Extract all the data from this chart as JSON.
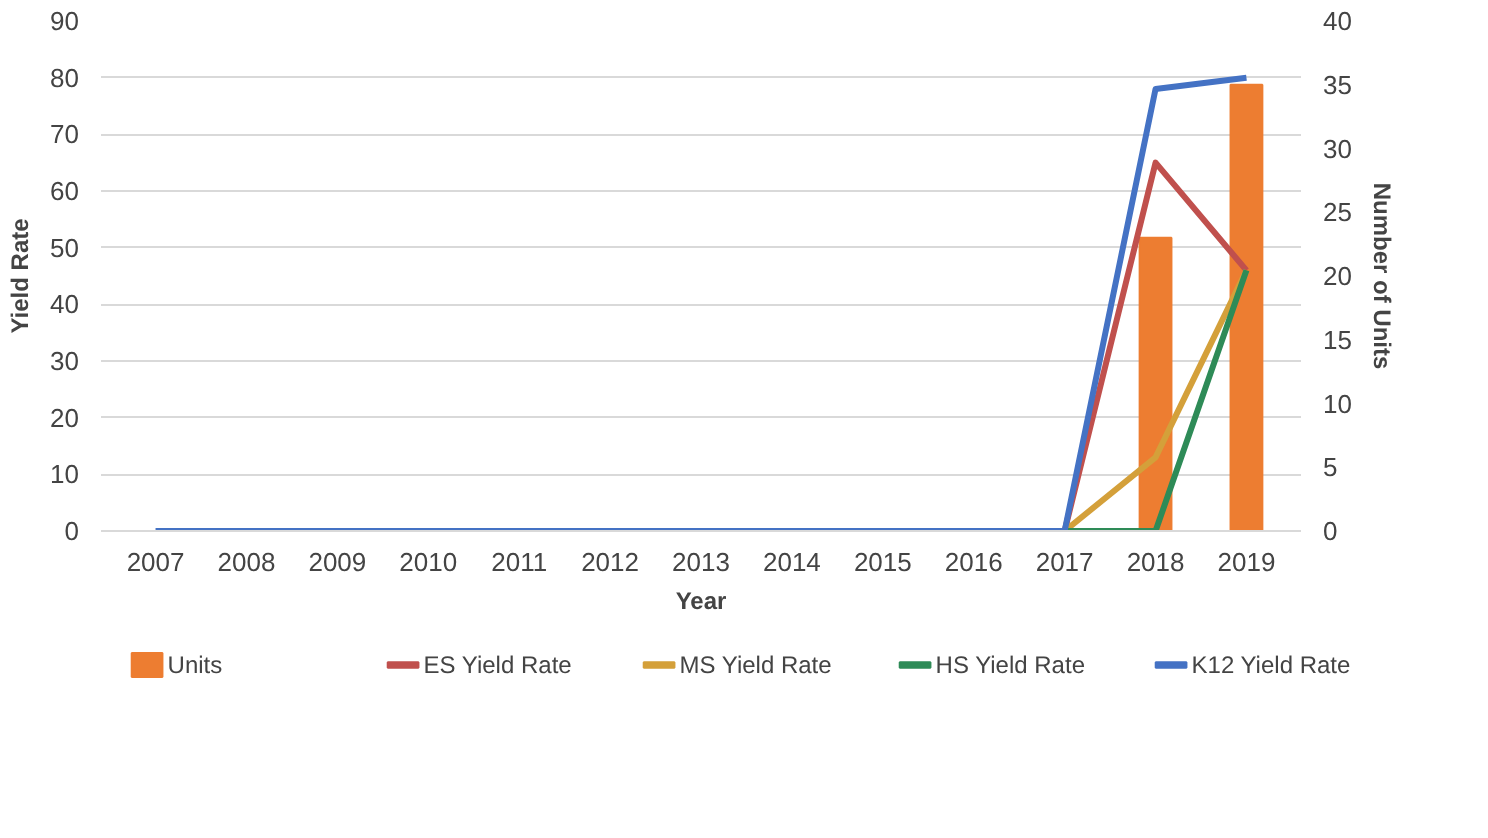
{
  "chart_data": {
    "type": "line",
    "xlabel": "Year",
    "ylabel": "Yield Rate",
    "y2label": "Number of Units",
    "categories": [
      "2007",
      "2008",
      "2009",
      "2010",
      "2011",
      "2012",
      "2013",
      "2014",
      "2015",
      "2016",
      "2017",
      "2018",
      "2019"
    ],
    "series": [
      {
        "name": "Units",
        "type": "bar",
        "axis": "y2",
        "color": "#ed7d31",
        "values": [
          null,
          null,
          null,
          null,
          null,
          null,
          null,
          null,
          null,
          null,
          null,
          23,
          35
        ]
      },
      {
        "name": "ES Yield Rate",
        "color": "#c0504d",
        "values": [
          null,
          null,
          null,
          null,
          null,
          null,
          null,
          null,
          null,
          null,
          0,
          65,
          46
        ]
      },
      {
        "name": "MS Yield Rate",
        "color": "#d4a03a",
        "values": [
          null,
          null,
          null,
          null,
          null,
          null,
          null,
          null,
          null,
          null,
          0,
          13,
          46
        ]
      },
      {
        "name": "HS Yield Rate",
        "color": "#2e8b57",
        "values": [
          null,
          null,
          null,
          null,
          null,
          null,
          null,
          null,
          null,
          null,
          0,
          0,
          46
        ]
      },
      {
        "name": "K12 Yield Rate",
        "color": "#4472c4",
        "values": [
          0,
          0,
          0,
          0,
          0,
          0,
          0,
          0,
          0,
          0,
          0,
          78,
          80
        ]
      }
    ],
    "ylim": [
      0,
      90
    ],
    "yticks": [
      0,
      10,
      20,
      30,
      40,
      50,
      60,
      70,
      80,
      90
    ],
    "y2lim": [
      0,
      40
    ],
    "y2ticks": [
      0,
      5,
      10,
      15,
      20,
      25,
      30,
      35,
      40
    ],
    "grid": "y",
    "legend": "bottom"
  }
}
